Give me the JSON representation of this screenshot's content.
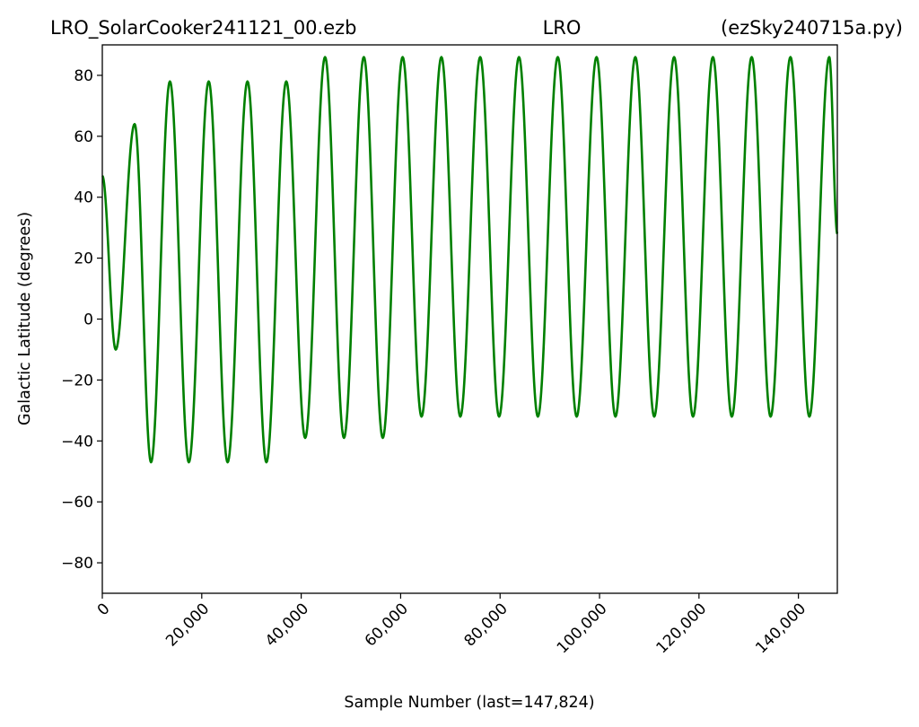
{
  "header": {
    "left": "LRO_SolarCooker241121_00.ezb",
    "center": "LRO",
    "right": "(ezSky240715a.py)"
  },
  "chart_data": {
    "type": "line",
    "title": "LRO_SolarCooker241121_00.ezb            LRO          (ezSky240715a.py)",
    "xlabel": "Sample Number (last=147,824)",
    "ylabel": "Galactic Latitude (degrees)",
    "xlim": [
      0,
      147824
    ],
    "ylim": [
      -90,
      90
    ],
    "xticks": [
      0,
      20000,
      40000,
      60000,
      80000,
      100000,
      120000,
      140000
    ],
    "xtick_labels": [
      "0",
      "20,000",
      "40,000",
      "60,000",
      "80,000",
      "100,000",
      "120,000",
      "140,000"
    ],
    "yticks": [
      -80,
      -60,
      -40,
      -20,
      0,
      20,
      40,
      60,
      80
    ],
    "ytick_labels": [
      "−80",
      "−60",
      "−40",
      "−20",
      "0",
      "20",
      "40",
      "60",
      "80"
    ],
    "grid": false,
    "series": [
      {
        "color": "#008000",
        "x": [
          0,
          2700,
          6500,
          9800,
          13600,
          17400,
          21400,
          25200,
          29200,
          33000,
          37000,
          40800,
          44800,
          48600,
          52600,
          56400,
          60400,
          64200,
          68200,
          72000,
          76000,
          79800,
          83800,
          87600,
          91600,
          95400,
          99400,
          103200,
          107200,
          111000,
          115000,
          118800,
          122800,
          126600,
          130600,
          134400,
          138400,
          142200,
          146200,
          147824
        ],
        "y": [
          47,
          -10,
          64,
          -47,
          78,
          -47,
          78,
          -47,
          78,
          -47,
          78,
          -39,
          86,
          -39,
          86,
          -39,
          86,
          -32,
          86,
          -32,
          86,
          -32,
          86,
          -32,
          86,
          -32,
          86,
          -32,
          86,
          -32,
          86,
          -32,
          86,
          -32,
          86,
          -32,
          86,
          -32,
          86,
          28
        ]
      }
    ]
  }
}
